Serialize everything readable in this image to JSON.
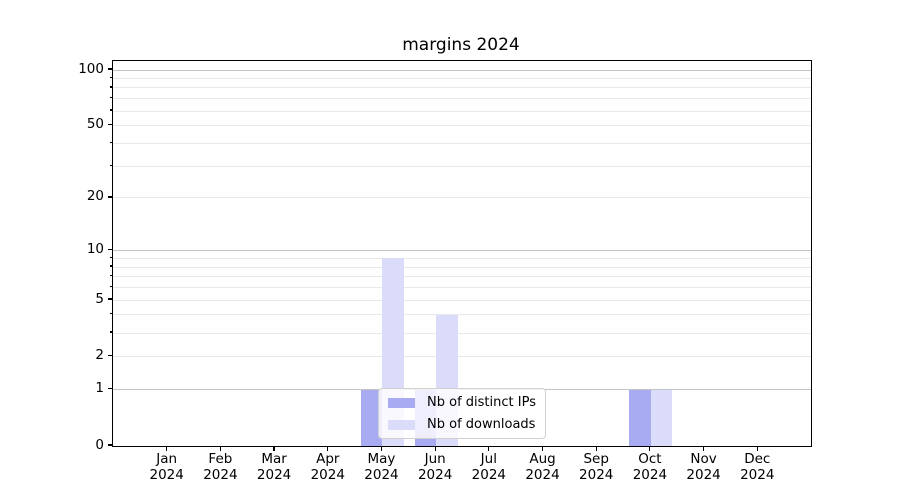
{
  "figure": {
    "background": "#ffffff"
  },
  "chart_data": {
    "type": "bar",
    "title": "margins 2024",
    "categories": [
      "Jan 2024",
      "Feb 2024",
      "Mar 2024",
      "Apr 2024",
      "May 2024",
      "Jun 2024",
      "Jul 2024",
      "Aug 2024",
      "Sep 2024",
      "Oct 2024",
      "Nov 2024",
      "Dec 2024"
    ],
    "series": [
      {
        "name": "Nb of distinct IPs",
        "color": "#a8aaf2",
        "values": [
          0,
          0,
          0,
          0,
          1,
          1,
          0,
          0,
          0,
          1,
          0,
          0
        ]
      },
      {
        "name": "Nb of downloads",
        "color": "#dbdcf9",
        "values": [
          0,
          0,
          0,
          0,
          9,
          4,
          0,
          0,
          0,
          1,
          0,
          0
        ]
      }
    ],
    "xlabel": "",
    "ylabel": "",
    "y_axis": {
      "scale": "log10(1+v)",
      "tick_values": [
        0,
        1,
        2,
        5,
        10,
        20,
        50,
        100
      ],
      "major_gridlines": [
        1,
        10,
        100
      ],
      "minor_gridlines": [
        2,
        3,
        4,
        5,
        6,
        7,
        8,
        9,
        20,
        30,
        40,
        50,
        60,
        70,
        80,
        90
      ],
      "ylim": [
        0,
        112
      ]
    },
    "grid": true,
    "legend": {
      "position": "lower center"
    },
    "colors": {
      "major_grid": "#c3c3c3",
      "minor_grid": "#e9e9e9",
      "spine": "#000000",
      "legend_border": "#d0d0d0",
      "text": "#000000"
    }
  }
}
